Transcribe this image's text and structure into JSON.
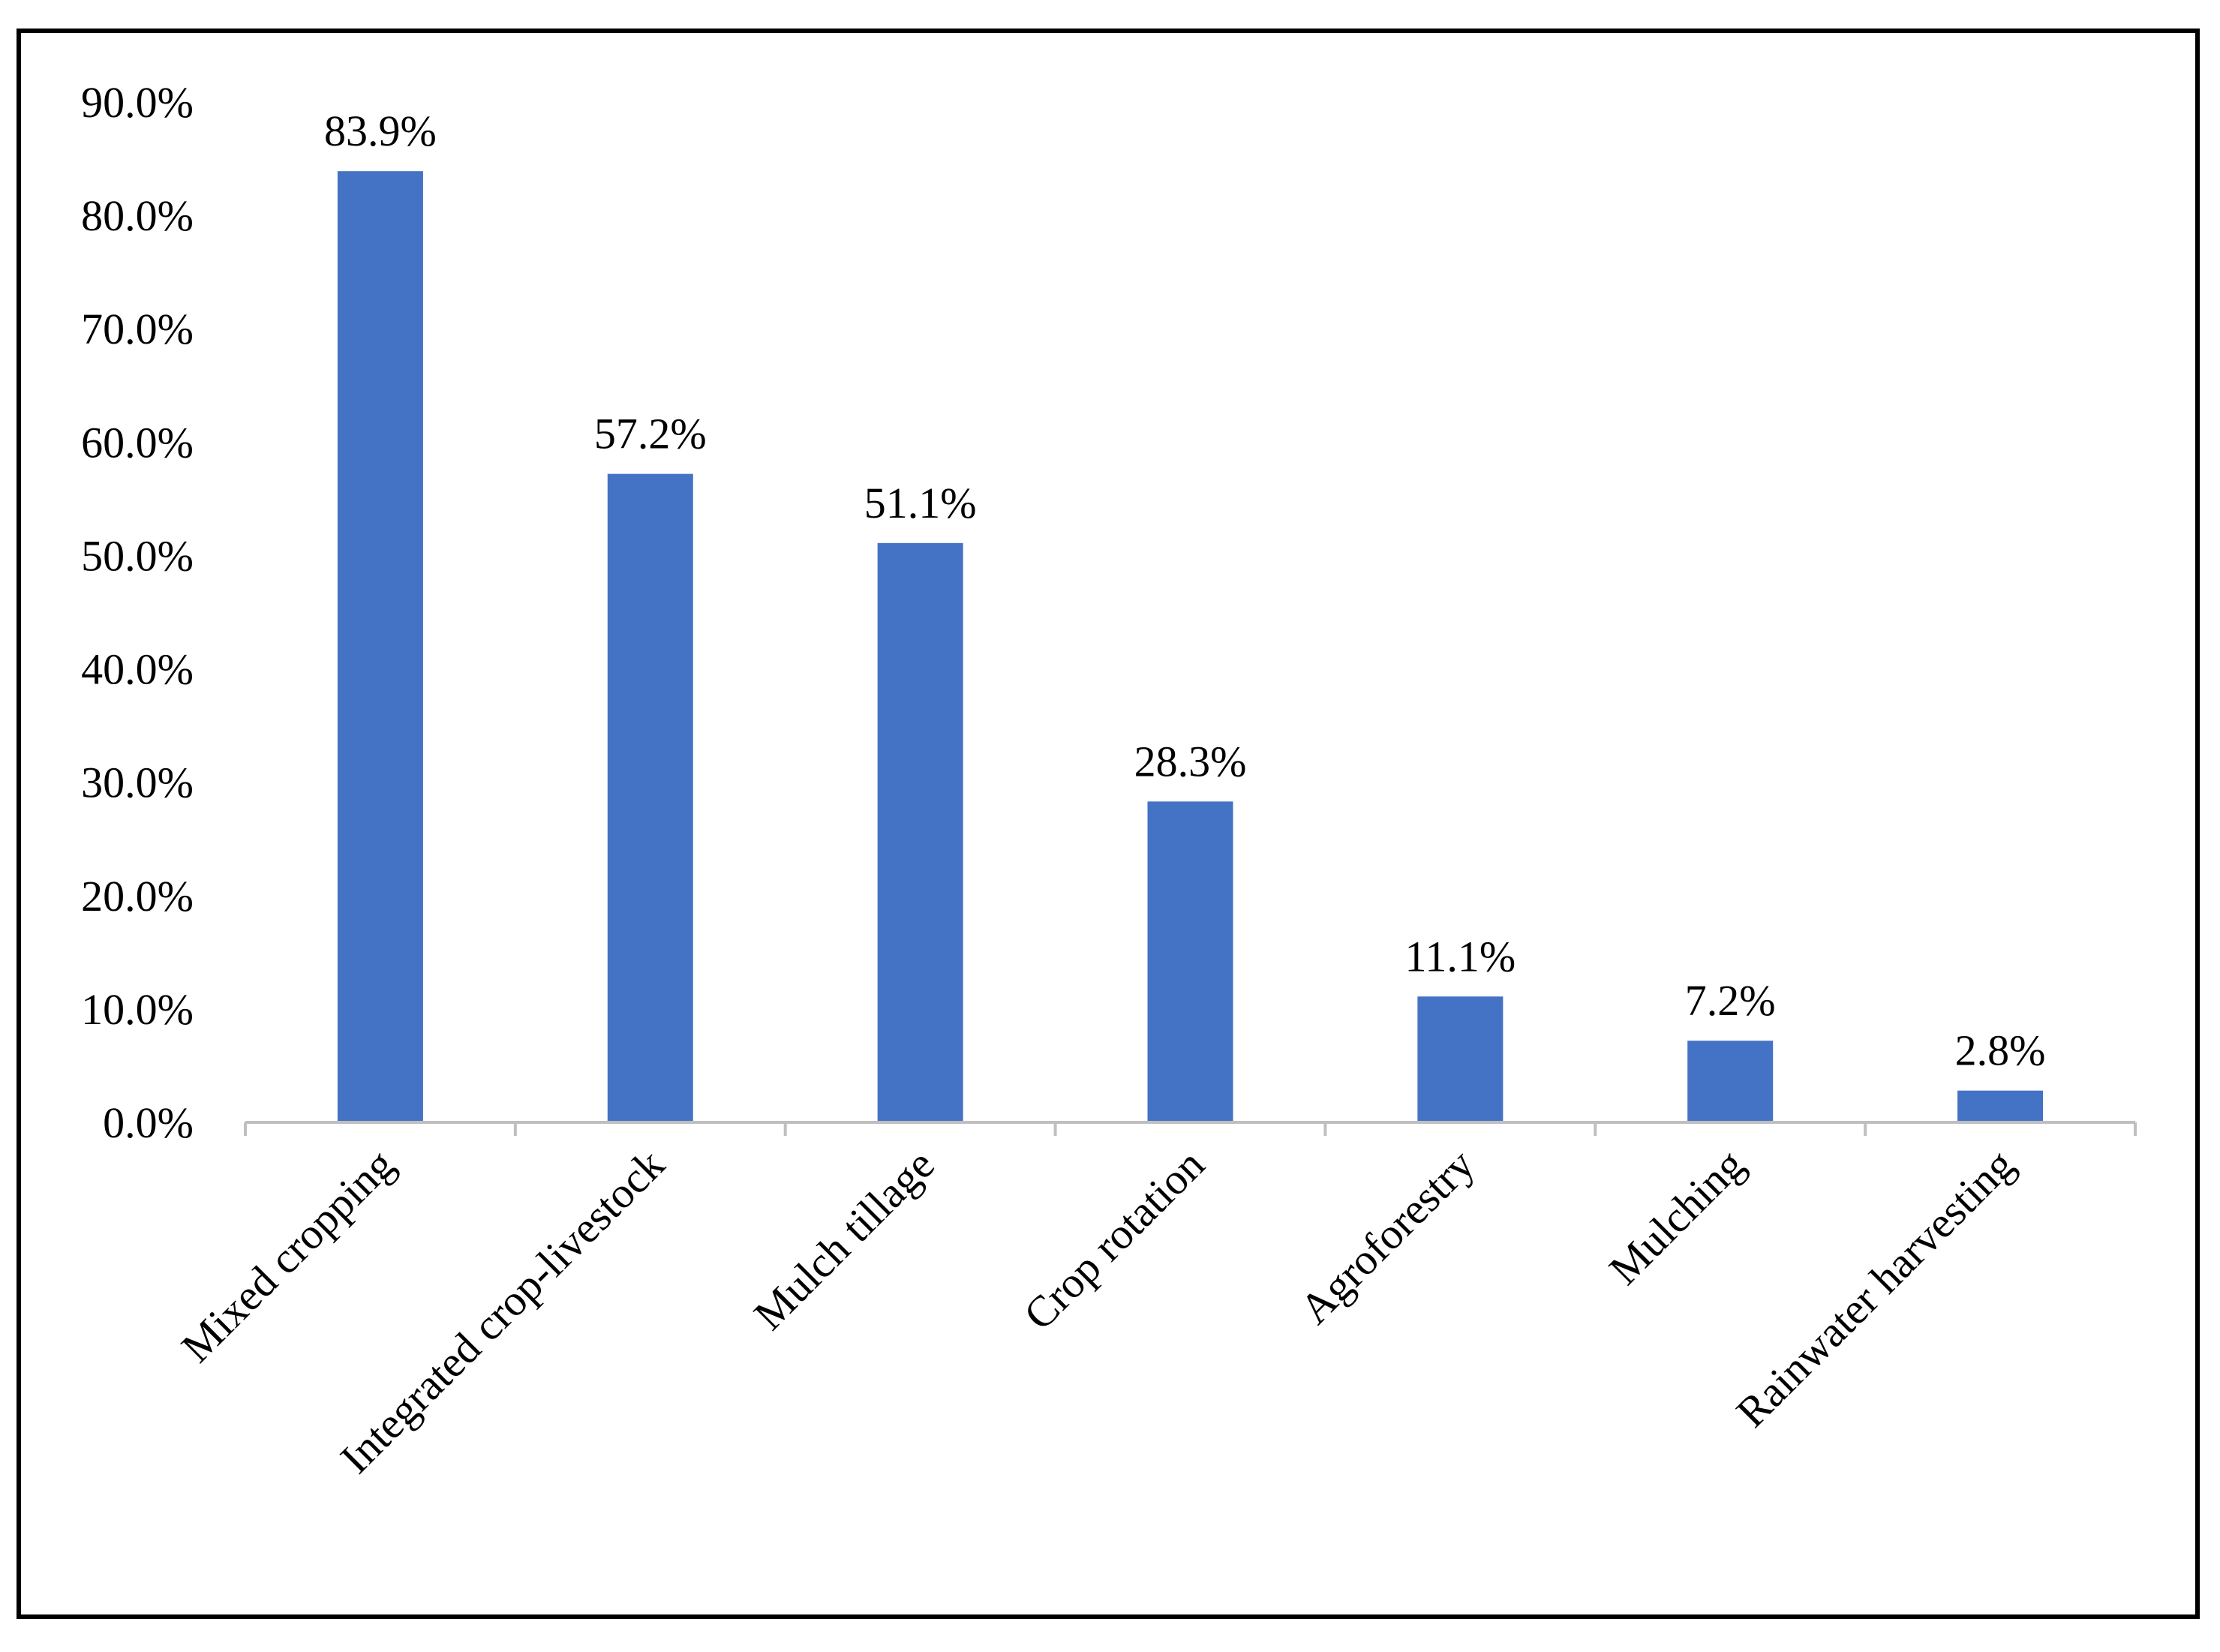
{
  "chart_data": {
    "type": "bar",
    "categories": [
      "Mixed cropping",
      "Integrated crop-livestock",
      "Mulch tillage",
      "Crop rotation",
      "Agroforestry",
      "Mulching",
      "Rainwater harvesting"
    ],
    "values": [
      83.9,
      57.2,
      51.1,
      28.3,
      11.1,
      7.2,
      2.8
    ],
    "data_labels": [
      "83.9%",
      "57.2%",
      "51.1%",
      "28.3%",
      "11.1%",
      "7.2%",
      "2.8%"
    ],
    "y_ticks": [
      "0.0%",
      "10.0%",
      "20.0%",
      "30.0%",
      "40.0%",
      "50.0%",
      "60.0%",
      "70.0%",
      "80.0%",
      "90.0%"
    ],
    "ylim": [
      0,
      90
    ],
    "grid": false,
    "legend": "none",
    "bar_color": "#4472C4"
  }
}
